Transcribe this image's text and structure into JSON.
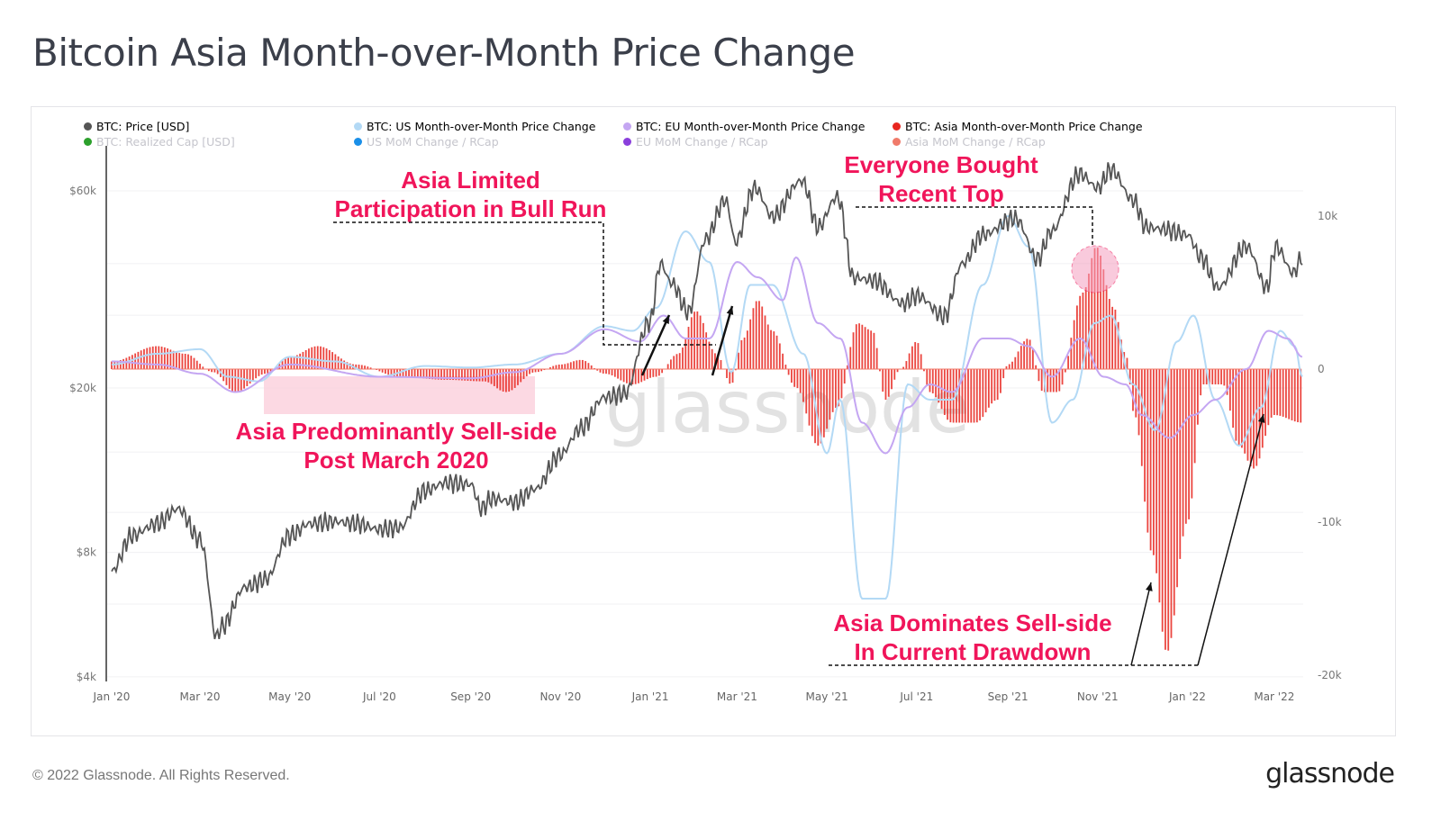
{
  "title": "Bitcoin Asia Month-over-Month Price Change",
  "footer": "© 2022 Glassnode. All Rights Reserved.",
  "logo": "glassnode",
  "watermark": "glassnode",
  "colors": {
    "price": "#555555",
    "us": "#b3d9f5",
    "eu": "#c4a6f2",
    "asia": "#e8261f",
    "realized": "#2ca02c",
    "us_rcap": "#1a8fe8",
    "eu_rcap": "#8a3fdc",
    "asia_rcap": "#f07a6a",
    "annotation": "#f0155a"
  },
  "legend": [
    {
      "label": "BTC: Price [USD]",
      "color": "#555555",
      "active": true
    },
    {
      "label": "BTC: US Month-over-Month Price Change",
      "color": "#b3d9f5",
      "active": true
    },
    {
      "label": "BTC: EU Month-over-Month Price Change",
      "color": "#c4a6f2",
      "active": true
    },
    {
      "label": "BTC: Asia Month-over-Month Price Change",
      "color": "#e8261f",
      "active": true
    },
    {
      "label": "BTC: Realized Cap [USD]",
      "color": "#2ca02c",
      "active": false
    },
    {
      "label": "US MoM Change / RCap",
      "color": "#1a8fe8",
      "active": false
    },
    {
      "label": "EU MoM Change / RCap",
      "color": "#8a3fdc",
      "active": false
    },
    {
      "label": "Asia MoM Change / RCap",
      "color": "#f07a6a",
      "active": false
    }
  ],
  "annotations": {
    "bull": "Asia Limited\nParticipation in Bull Run",
    "top": "Everyone Bought\nRecent Top",
    "sellside": "Asia Predominantly Sell-side\nPost March 2020",
    "drawdown": "Asia Dominates Sell-side\nIn Current Drawdown"
  },
  "chart_data": {
    "type": "line",
    "title": "Bitcoin Asia Month-over-Month Price Change",
    "x_ticks": [
      "Jan '20",
      "Mar '20",
      "May '20",
      "Jul '20",
      "Sep '20",
      "Nov '20",
      "Jan '21",
      "Mar '21",
      "May '21",
      "Jul '21",
      "Sep '21",
      "Nov '21",
      "Jan '22",
      "Mar '22"
    ],
    "x_tick_dates": [
      "2020-01-01",
      "2020-03-01",
      "2020-05-01",
      "2020-07-01",
      "2020-09-01",
      "2020-11-01",
      "2021-01-01",
      "2021-03-01",
      "2021-05-01",
      "2021-07-01",
      "2021-09-01",
      "2021-11-01",
      "2022-01-01",
      "2022-03-01"
    ],
    "x_range": [
      "2020-01-01",
      "2022-03-20"
    ],
    "y_left": {
      "scale": "log",
      "range": [
        4000,
        70000
      ],
      "ticks": [
        60000,
        20000,
        8000,
        4000
      ],
      "tick_labels": [
        "$60k",
        "$20k",
        "$8k",
        "$4k"
      ]
    },
    "y_right": {
      "scale": "linear",
      "range": [
        -20000,
        10000
      ],
      "ticks": [
        10000,
        0,
        -10000,
        -20000
      ],
      "tick_labels": [
        "10k",
        "0",
        "-10k",
        "-20k"
      ]
    },
    "grid": true,
    "legend_position": "top",
    "series": [
      {
        "name": "BTC: Price [USD]",
        "axis": "left",
        "style": "line",
        "points": [
          [
            "2020-01-01",
            7200
          ],
          [
            "2020-01-15",
            8800
          ],
          [
            "2020-02-01",
            9400
          ],
          [
            "2020-02-15",
            10200
          ],
          [
            "2020-03-01",
            8600
          ],
          [
            "2020-03-12",
            5000
          ],
          [
            "2020-03-16",
            5300
          ],
          [
            "2020-04-01",
            6600
          ],
          [
            "2020-04-15",
            6900
          ],
          [
            "2020-05-01",
            8800
          ],
          [
            "2020-05-15",
            9400
          ],
          [
            "2020-06-01",
            9500
          ],
          [
            "2020-06-15",
            9400
          ],
          [
            "2020-07-01",
            9100
          ],
          [
            "2020-07-15",
            9200
          ],
          [
            "2020-08-01",
            11300
          ],
          [
            "2020-08-15",
            11800
          ],
          [
            "2020-09-01",
            11700
          ],
          [
            "2020-09-08",
            10200
          ],
          [
            "2020-09-15",
            10800
          ],
          [
            "2020-10-01",
            10600
          ],
          [
            "2020-10-15",
            11400
          ],
          [
            "2020-11-01",
            13800
          ],
          [
            "2020-11-15",
            16000
          ],
          [
            "2020-12-01",
            19000
          ],
          [
            "2020-12-15",
            19400
          ],
          [
            "2021-01-01",
            29000
          ],
          [
            "2021-01-08",
            40000
          ],
          [
            "2021-01-15",
            36000
          ],
          [
            "2021-01-27",
            30500
          ],
          [
            "2021-02-08",
            46000
          ],
          [
            "2021-02-21",
            57000
          ],
          [
            "2021-02-28",
            45000
          ],
          [
            "2021-03-13",
            61000
          ],
          [
            "2021-03-25",
            52000
          ],
          [
            "2021-04-14",
            63500
          ],
          [
            "2021-04-25",
            49000
          ],
          [
            "2021-05-08",
            58000
          ],
          [
            "2021-05-19",
            37000
          ],
          [
            "2021-06-01",
            36500
          ],
          [
            "2021-06-22",
            32000
          ],
          [
            "2021-07-01",
            33500
          ],
          [
            "2021-07-20",
            29800
          ],
          [
            "2021-08-01",
            40000
          ],
          [
            "2021-08-15",
            47000
          ],
          [
            "2021-09-06",
            51500
          ],
          [
            "2021-09-21",
            41000
          ],
          [
            "2021-10-01",
            48000
          ],
          [
            "2021-10-20",
            66000
          ],
          [
            "2021-11-01",
            61000
          ],
          [
            "2021-11-10",
            67500
          ],
          [
            "2021-11-25",
            57000
          ],
          [
            "2021-12-04",
            49000
          ],
          [
            "2021-12-15",
            48500
          ],
          [
            "2022-01-01",
            47000
          ],
          [
            "2022-01-10",
            41500
          ],
          [
            "2022-01-22",
            35000
          ],
          [
            "2022-02-10",
            44000
          ],
          [
            "2022-02-24",
            35000
          ],
          [
            "2022-03-02",
            44000
          ],
          [
            "2022-03-14",
            38000
          ],
          [
            "2022-03-20",
            41500
          ]
        ]
      },
      {
        "name": "BTC: US Month-over-Month Price Change",
        "axis": "right",
        "style": "line",
        "points": [
          [
            "2020-01-01",
            300
          ],
          [
            "2020-02-01",
            1000
          ],
          [
            "2020-03-01",
            1300
          ],
          [
            "2020-03-20",
            -500
          ],
          [
            "2020-04-10",
            -800
          ],
          [
            "2020-05-01",
            800
          ],
          [
            "2020-06-01",
            500
          ],
          [
            "2020-07-01",
            -500
          ],
          [
            "2020-08-01",
            200
          ],
          [
            "2020-09-01",
            100
          ],
          [
            "2020-10-01",
            300
          ],
          [
            "2020-11-01",
            1000
          ],
          [
            "2020-12-01",
            2800
          ],
          [
            "2020-12-20",
            2500
          ],
          [
            "2021-01-05",
            4000
          ],
          [
            "2021-01-25",
            9000
          ],
          [
            "2021-02-10",
            7000
          ],
          [
            "2021-02-25",
            -200
          ],
          [
            "2021-03-10",
            5500
          ],
          [
            "2021-03-25",
            5500
          ],
          [
            "2021-04-15",
            1000
          ],
          [
            "2021-05-01",
            -5500
          ],
          [
            "2021-05-10",
            -2000
          ],
          [
            "2021-05-25",
            -15000
          ],
          [
            "2021-06-10",
            -15000
          ],
          [
            "2021-06-25",
            -1000
          ],
          [
            "2021-07-10",
            -2000
          ],
          [
            "2021-07-25",
            -2000
          ],
          [
            "2021-08-15",
            5500
          ],
          [
            "2021-09-01",
            10000
          ],
          [
            "2021-09-15",
            8000
          ],
          [
            "2021-10-01",
            -3500
          ],
          [
            "2021-10-15",
            -2000
          ],
          [
            "2021-10-30",
            3000
          ],
          [
            "2021-11-10",
            3500
          ],
          [
            "2021-11-25",
            -1000
          ],
          [
            "2021-12-10",
            -4000
          ],
          [
            "2021-12-25",
            1800
          ],
          [
            "2022-01-05",
            3500
          ],
          [
            "2022-01-20",
            -2000
          ],
          [
            "2022-02-05",
            -5000
          ],
          [
            "2022-02-20",
            -2500
          ],
          [
            "2022-03-05",
            2500
          ],
          [
            "2022-03-15",
            1500
          ],
          [
            "2022-03-20",
            -500
          ]
        ]
      },
      {
        "name": "BTC: EU Month-over-Month Price Change",
        "axis": "right",
        "style": "line",
        "points": [
          [
            "2020-01-01",
            500
          ],
          [
            "2020-02-01",
            300
          ],
          [
            "2020-03-01",
            -300
          ],
          [
            "2020-03-25",
            -1500
          ],
          [
            "2020-05-01",
            300
          ],
          [
            "2020-07-01",
            -500
          ],
          [
            "2020-09-01",
            -600
          ],
          [
            "2020-10-01",
            -200
          ],
          [
            "2020-11-01",
            1000
          ],
          [
            "2020-12-01",
            2600
          ],
          [
            "2020-12-25",
            1800
          ],
          [
            "2021-01-10",
            3500
          ],
          [
            "2021-01-25",
            2000
          ],
          [
            "2021-02-10",
            2000
          ],
          [
            "2021-03-01",
            7000
          ],
          [
            "2021-03-15",
            6000
          ],
          [
            "2021-04-01",
            4500
          ],
          [
            "2021-04-10",
            7300
          ],
          [
            "2021-04-25",
            3000
          ],
          [
            "2021-05-10",
            2000
          ],
          [
            "2021-05-25",
            -3500
          ],
          [
            "2021-06-10",
            -5500
          ],
          [
            "2021-06-25",
            -2500
          ],
          [
            "2021-07-10",
            -1000
          ],
          [
            "2021-07-25",
            -1500
          ],
          [
            "2021-08-15",
            2000
          ],
          [
            "2021-09-01",
            2000
          ],
          [
            "2021-09-15",
            1500
          ],
          [
            "2021-10-01",
            -500
          ],
          [
            "2021-10-20",
            2000
          ],
          [
            "2021-11-05",
            -500
          ],
          [
            "2021-11-20",
            -1000
          ],
          [
            "2021-12-01",
            -3000
          ],
          [
            "2021-12-20",
            -4500
          ],
          [
            "2022-01-05",
            -3000
          ],
          [
            "2022-01-20",
            -2000
          ],
          [
            "2022-02-10",
            0
          ],
          [
            "2022-02-25",
            2500
          ],
          [
            "2022-03-10",
            2000
          ],
          [
            "2022-03-20",
            800
          ]
        ]
      },
      {
        "name": "BTC: Asia Month-over-Month Price Change",
        "axis": "right",
        "style": "bar",
        "points": [
          [
            "2020-01-01",
            500
          ],
          [
            "2020-02-01",
            1500
          ],
          [
            "2020-02-20",
            1000
          ],
          [
            "2020-03-10",
            -200
          ],
          [
            "2020-03-25",
            -1500
          ],
          [
            "2020-04-15",
            -300
          ],
          [
            "2020-05-01",
            800
          ],
          [
            "2020-05-20",
            1500
          ],
          [
            "2020-06-15",
            300
          ],
          [
            "2020-07-15",
            -500
          ],
          [
            "2020-08-15",
            -700
          ],
          [
            "2020-09-10",
            -800
          ],
          [
            "2020-09-25",
            -1500
          ],
          [
            "2020-10-15",
            -200
          ],
          [
            "2020-11-01",
            300
          ],
          [
            "2020-11-15",
            600
          ],
          [
            "2020-12-01",
            -300
          ],
          [
            "2020-12-20",
            -1000
          ],
          [
            "2021-01-05",
            -500
          ],
          [
            "2021-01-20",
            1000
          ],
          [
            "2021-02-01",
            3800
          ],
          [
            "2021-02-15",
            1000
          ],
          [
            "2021-02-25",
            -1000
          ],
          [
            "2021-03-05",
            2000
          ],
          [
            "2021-03-15",
            4500
          ],
          [
            "2021-03-25",
            2500
          ],
          [
            "2021-04-10",
            -1200
          ],
          [
            "2021-04-25",
            -5000
          ],
          [
            "2021-05-08",
            -2500
          ],
          [
            "2021-05-22",
            3000
          ],
          [
            "2021-06-01",
            2500
          ],
          [
            "2021-06-10",
            -2000
          ],
          [
            "2021-06-20",
            0
          ],
          [
            "2021-07-01",
            1800
          ],
          [
            "2021-07-10",
            -1500
          ],
          [
            "2021-07-25",
            -3500
          ],
          [
            "2021-08-10",
            -3500
          ],
          [
            "2021-08-25",
            -2000
          ],
          [
            "2021-09-01",
            300
          ],
          [
            "2021-09-15",
            2000
          ],
          [
            "2021-09-25",
            -1500
          ],
          [
            "2021-10-05",
            -1500
          ],
          [
            "2021-10-22",
            5000
          ],
          [
            "2021-10-31",
            8000
          ],
          [
            "2021-11-12",
            4000
          ],
          [
            "2021-11-20",
            1000
          ],
          [
            "2021-11-26",
            -3000
          ],
          [
            "2021-12-08",
            -12000
          ],
          [
            "2021-12-18",
            -18500
          ],
          [
            "2022-01-01",
            -10000
          ],
          [
            "2022-01-12",
            -1000
          ],
          [
            "2022-01-25",
            -1000
          ],
          [
            "2022-02-05",
            -5000
          ],
          [
            "2022-02-15",
            -6500
          ],
          [
            "2022-03-01",
            -3000
          ],
          [
            "2022-03-20",
            -3500
          ]
        ]
      }
    ]
  }
}
